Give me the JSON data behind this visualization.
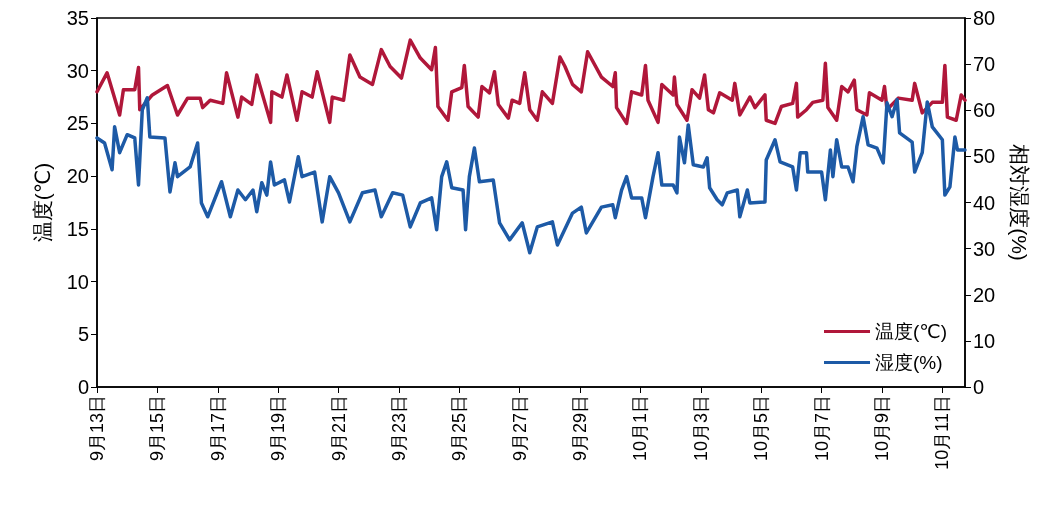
{
  "chart_data": {
    "type": "line",
    "ylabel": "温度(℃)",
    "y2label": "相対湿度(%)",
    "xlim": [
      "--09-13T00:00",
      "--10-11T18:00"
    ],
    "xticks": [
      {
        "value": "--09-13",
        "label": "9月13日"
      },
      {
        "value": "--09-15",
        "label": "9月15日"
      },
      {
        "value": "--09-17",
        "label": "9月17日"
      },
      {
        "value": "--09-19",
        "label": "9月19日"
      },
      {
        "value": "--09-21",
        "label": "9月21日"
      },
      {
        "value": "--09-23",
        "label": "9月23日"
      },
      {
        "value": "--09-25",
        "label": "9月25日"
      },
      {
        "value": "--09-27",
        "label": "9月27日"
      },
      {
        "value": "--09-29",
        "label": "9月29日"
      },
      {
        "value": "--10-01",
        "label": "10月1日"
      },
      {
        "value": "--10-03",
        "label": "10月3日"
      },
      {
        "value": "--10-05",
        "label": "10月5日"
      },
      {
        "value": "--10-07",
        "label": "10月7日"
      },
      {
        "value": "--10-09",
        "label": "10月9日"
      },
      {
        "value": "--10-11",
        "label": "10月11日"
      }
    ],
    "ylim": [
      0,
      35
    ],
    "yticks": [
      0,
      5,
      10,
      15,
      20,
      25,
      30,
      35
    ],
    "y2lim": [
      0,
      80
    ],
    "y2ticks": [
      0,
      10,
      20,
      30,
      40,
      50,
      60,
      70,
      80
    ],
    "legend": "bottom right",
    "grid": false,
    "marker": "none",
    "series": [
      {
        "name": "温度(℃)",
        "color": "#b0173a",
        "x": [
          "--09-13T00:00",
          "--09-13T08:00",
          "--09-13T18:00",
          "--09-13T21:00",
          "--09-14T06:00",
          "--09-14T09:00",
          "--09-14T10:00",
          "--09-14T20:00",
          "--09-15T08:00",
          "--09-15T16:00",
          "--09-16T00:00",
          "--09-16T10:00",
          "--09-16T12:00",
          "--09-16T18:00",
          "--09-17T04:00",
          "--09-17T07:00",
          "--09-17T16:00",
          "--09-17T19:00",
          "--09-18T03:00",
          "--09-18T07:00",
          "--09-18T18:00",
          "--09-18T19:00",
          "--09-19T03:00",
          "--09-19T07:00",
          "--09-19T15:00",
          "--09-19T19:00",
          "--09-20T03:00",
          "--09-20T07:00",
          "--09-20T17:00",
          "--09-20T19:00",
          "--09-21T04:00",
          "--09-21T09:00",
          "--09-21T17:00",
          "--09-22T03:00",
          "--09-22T10:00",
          "--09-22T17:00",
          "--09-23T02:00",
          "--09-23T09:00",
          "--09-23T17:00",
          "--09-24T02:00",
          "--09-24T05:00",
          "--09-24T07:00",
          "--09-24T15:00",
          "--09-24T18:00",
          "--09-25T02:00",
          "--09-25T04:00",
          "--09-25T07:00",
          "--09-25T15:00",
          "--09-25T18:00",
          "--09-26T00:00",
          "--09-26T04:00",
          "--09-26T07:00",
          "--09-26T15:00",
          "--09-26T18:00",
          "--09-27T00:00",
          "--09-27T04:00",
          "--09-27T08:00",
          "--09-27T14:00",
          "--09-27T18:00",
          "--09-28T02:00",
          "--09-28T08:00",
          "--09-28T12:00",
          "--09-28T18:00",
          "--09-29T01:00",
          "--09-29T06:00",
          "--09-29T17:00",
          "--09-30T02:00",
          "--09-30T04:00",
          "--09-30T05:00",
          "--09-30T13:00",
          "--09-30T17:00",
          "--10-01T01:00",
          "--10-01T04:00",
          "--10-01T06:00",
          "--10-01T14:00",
          "--10-01T17:00",
          "--10-02T02:00",
          "--10-02T03:00",
          "--10-02T05:00",
          "--10-02T13:00",
          "--10-02T17:00",
          "--10-02T23:00",
          "--10-03T03:00",
          "--10-03T06:00",
          "--10-03T10:00",
          "--10-03T15:00",
          "--10-04T01:00",
          "--10-04T03:00",
          "--10-04T07:00",
          "--10-04T15:00",
          "--10-04T19:00",
          "--10-05T03:00",
          "--10-05T04:00",
          "--10-05T11:00",
          "--10-05T16:00",
          "--10-06T01:00",
          "--10-06T04:00",
          "--10-06T05:00",
          "--10-06T12:00",
          "--10-06T17:00",
          "--10-07T01:00",
          "--10-07T03:00",
          "--10-07T05:00",
          "--10-07T12:00",
          "--10-07T16:00",
          "--10-07T21:00",
          "--10-08T02:00",
          "--10-08T04:00",
          "--10-08T12:00",
          "--10-08T14:00",
          "--10-09T00:00",
          "--10-09T02:00",
          "--10-09T04:00",
          "--10-09T13:00",
          "--10-10T00:00",
          "--10-10T02:00",
          "--10-10T08:00",
          "--10-10T16:00",
          "--10-11T00:00",
          "--10-11T02:00",
          "--10-11T04:00",
          "--10-11T11:00",
          "--10-11T15:00",
          "--10-11T18:00"
        ],
        "values": [
          28.0,
          29.8,
          25.8,
          28.2,
          28.2,
          30.3,
          26.3,
          27.7,
          28.6,
          25.8,
          27.4,
          27.4,
          26.5,
          27.2,
          26.9,
          29.8,
          25.6,
          27.5,
          26.8,
          29.6,
          25.1,
          28.0,
          27.5,
          29.6,
          25.3,
          28.0,
          27.5,
          29.9,
          25.1,
          27.5,
          27.2,
          31.5,
          29.4,
          28.7,
          32.0,
          30.4,
          29.3,
          32.9,
          31.2,
          30.1,
          32.2,
          26.6,
          25.3,
          28.0,
          28.4,
          30.5,
          26.6,
          25.6,
          28.5,
          27.9,
          29.9,
          26.8,
          25.5,
          27.2,
          26.9,
          29.8,
          26.3,
          25.3,
          28.0,
          26.9,
          31.3,
          30.4,
          28.7,
          28.0,
          31.8,
          29.4,
          28.5,
          29.8,
          26.5,
          25.0,
          28.0,
          27.7,
          30.5,
          27.2,
          25.1,
          28.7,
          27.7,
          29.4,
          26.8,
          25.3,
          28.2,
          27.4,
          29.6,
          26.3,
          26.0,
          27.9,
          27.2,
          28.8,
          25.8,
          27.5,
          26.5,
          27.7,
          25.3,
          25.0,
          26.6,
          26.9,
          28.8,
          25.6,
          26.3,
          27.0,
          27.2,
          30.7,
          26.5,
          25.3,
          28.5,
          28.0,
          29.1,
          26.3,
          25.8,
          27.9,
          27.2,
          28.5,
          26.3,
          27.4,
          27.2,
          28.8,
          26.0,
          27.0,
          27.0,
          30.5,
          25.6,
          25.3,
          27.7,
          27.2
        ]
      },
      {
        "name": "湿度(%)",
        "color": "#1d5aa6",
        "axis": "y2",
        "x": [
          "--09-13T00:00",
          "--09-13T06:00",
          "--09-13T12:00",
          "--09-13T14:00",
          "--09-13T18:00",
          "--09-14T00:00",
          "--09-14T06:00",
          "--09-14T09:00",
          "--09-14T12:00",
          "--09-14T16:00",
          "--09-14T18:00",
          "--09-15T06:00",
          "--09-15T10:00",
          "--09-15T14:00",
          "--09-15T16:00",
          "--09-16T02:00",
          "--09-16T08:00",
          "--09-16T11:00",
          "--09-16T16:00",
          "--09-17T03:00",
          "--09-17T10:00",
          "--09-17T16:00",
          "--09-17T22:00",
          "--09-18T04:00",
          "--09-18T07:00",
          "--09-18T11:00",
          "--09-18T15:00",
          "--09-18T18:00",
          "--09-18T21:00",
          "--09-19T05:00",
          "--09-19T09:00",
          "--09-19T16:00",
          "--09-19T19:00",
          "--09-20T05:00",
          "--09-20T11:00",
          "--09-20T17:00",
          "--09-21T00:00",
          "--09-21T09:00",
          "--09-21T19:00",
          "--09-22T05:00",
          "--09-22T10:00",
          "--09-22T19:00",
          "--09-23T03:00",
          "--09-23T09:00",
          "--09-23T17:00",
          "--09-24T02:00",
          "--09-24T06:00",
          "--09-24T10:00",
          "--09-24T14:00",
          "--09-24T18:00",
          "--09-25T03:00",
          "--09-25T05:00",
          "--09-25T08:00",
          "--09-25T12:00",
          "--09-25T16:00",
          "--09-26T03:00",
          "--09-26T08:00",
          "--09-26T16:00",
          "--09-27T02:00",
          "--09-27T08:00",
          "--09-27T14:00",
          "--09-28T02:00",
          "--09-28T06:00",
          "--09-28T18:00",
          "--09-29T01:00",
          "--09-29T05:00",
          "--09-29T17:00",
          "--09-30T02:00",
          "--09-30T04:00",
          "--09-30T09:00",
          "--09-30T13:00",
          "--09-30T17:00",
          "--10-01T01:00",
          "--10-01T04:00",
          "--10-01T10:00",
          "--10-01T14:00",
          "--10-01T17:00",
          "--10-02T02:00",
          "--10-02T05:00",
          "--10-02T07:00",
          "--10-02T11:00",
          "--10-02T14:00",
          "--10-02T18:00",
          "--10-03T02:00",
          "--10-03T05:00",
          "--10-03T07:00",
          "--10-03T13:00",
          "--10-03T17:00",
          "--10-03T21:00",
          "--10-04T05:00",
          "--10-04T07:00",
          "--10-04T13:00",
          "--10-04T15:00",
          "--10-05T03:00",
          "--10-05T04:00",
          "--10-05T11:00",
          "--10-05T15:00",
          "--10-06T01:00",
          "--10-06T04:00",
          "--10-06T07:00",
          "--10-06T12:00",
          "--10-06T13:00",
          "--10-07T00:00",
          "--10-07T03:00",
          "--10-07T07:00",
          "--10-07T09:00",
          "--10-07T12:00",
          "--10-07T16:00",
          "--10-07T21:00",
          "--10-08T01:00",
          "--10-08T04:00",
          "--10-08T09:00",
          "--10-08T13:00",
          "--10-08T20:00",
          "--10-09T01:00",
          "--10-09T04:00",
          "--10-09T08:00",
          "--10-09T12:00",
          "--10-09T14:00",
          "--10-10T00:00",
          "--10-10T02:00",
          "--10-10T08:00",
          "--10-10T12:00",
          "--10-10T16:00",
          "--10-11T00:00",
          "--10-11T02:00",
          "--10-11T06:00",
          "--10-11T10:00",
          "--10-11T12:00",
          "--10-11T18:00"
        ],
        "values": [
          54.0,
          52.9,
          47.1,
          56.4,
          50.8,
          54.7,
          54.0,
          43.8,
          60.1,
          62.7,
          54.2,
          54.0,
          42.3,
          48.6,
          45.6,
          47.7,
          52.9,
          39.9,
          36.9,
          44.5,
          36.9,
          42.7,
          40.6,
          42.7,
          38.0,
          44.3,
          41.6,
          48.8,
          43.8,
          44.9,
          40.1,
          49.9,
          45.6,
          46.6,
          35.8,
          45.6,
          42.1,
          35.8,
          42.1,
          42.7,
          36.9,
          42.1,
          41.6,
          34.7,
          39.9,
          41.0,
          34.1,
          45.6,
          48.8,
          43.2,
          42.7,
          34.1,
          45.6,
          51.8,
          44.5,
          44.9,
          35.6,
          31.9,
          35.6,
          29.1,
          34.7,
          35.8,
          30.8,
          37.7,
          39.0,
          33.4,
          39.0,
          39.5,
          36.7,
          42.7,
          45.6,
          41.0,
          41.0,
          36.7,
          45.6,
          50.8,
          43.8,
          43.8,
          42.1,
          54.2,
          48.6,
          56.8,
          48.2,
          47.7,
          49.7,
          43.2,
          40.6,
          39.5,
          42.1,
          42.7,
          36.9,
          42.7,
          39.9,
          40.1,
          49.2,
          53.6,
          48.8,
          47.7,
          42.7,
          50.8,
          50.8,
          46.6,
          46.6,
          40.6,
          51.4,
          45.6,
          53.6,
          47.7,
          47.7,
          44.5,
          52.1,
          58.6,
          52.5,
          51.8,
          48.6,
          61.6,
          58.6,
          62.3,
          55.1,
          53.1,
          46.6,
          50.8,
          61.8,
          56.4,
          53.6,
          41.6,
          43.4,
          54.2,
          51.4,
          51.4
        ]
      }
    ]
  }
}
